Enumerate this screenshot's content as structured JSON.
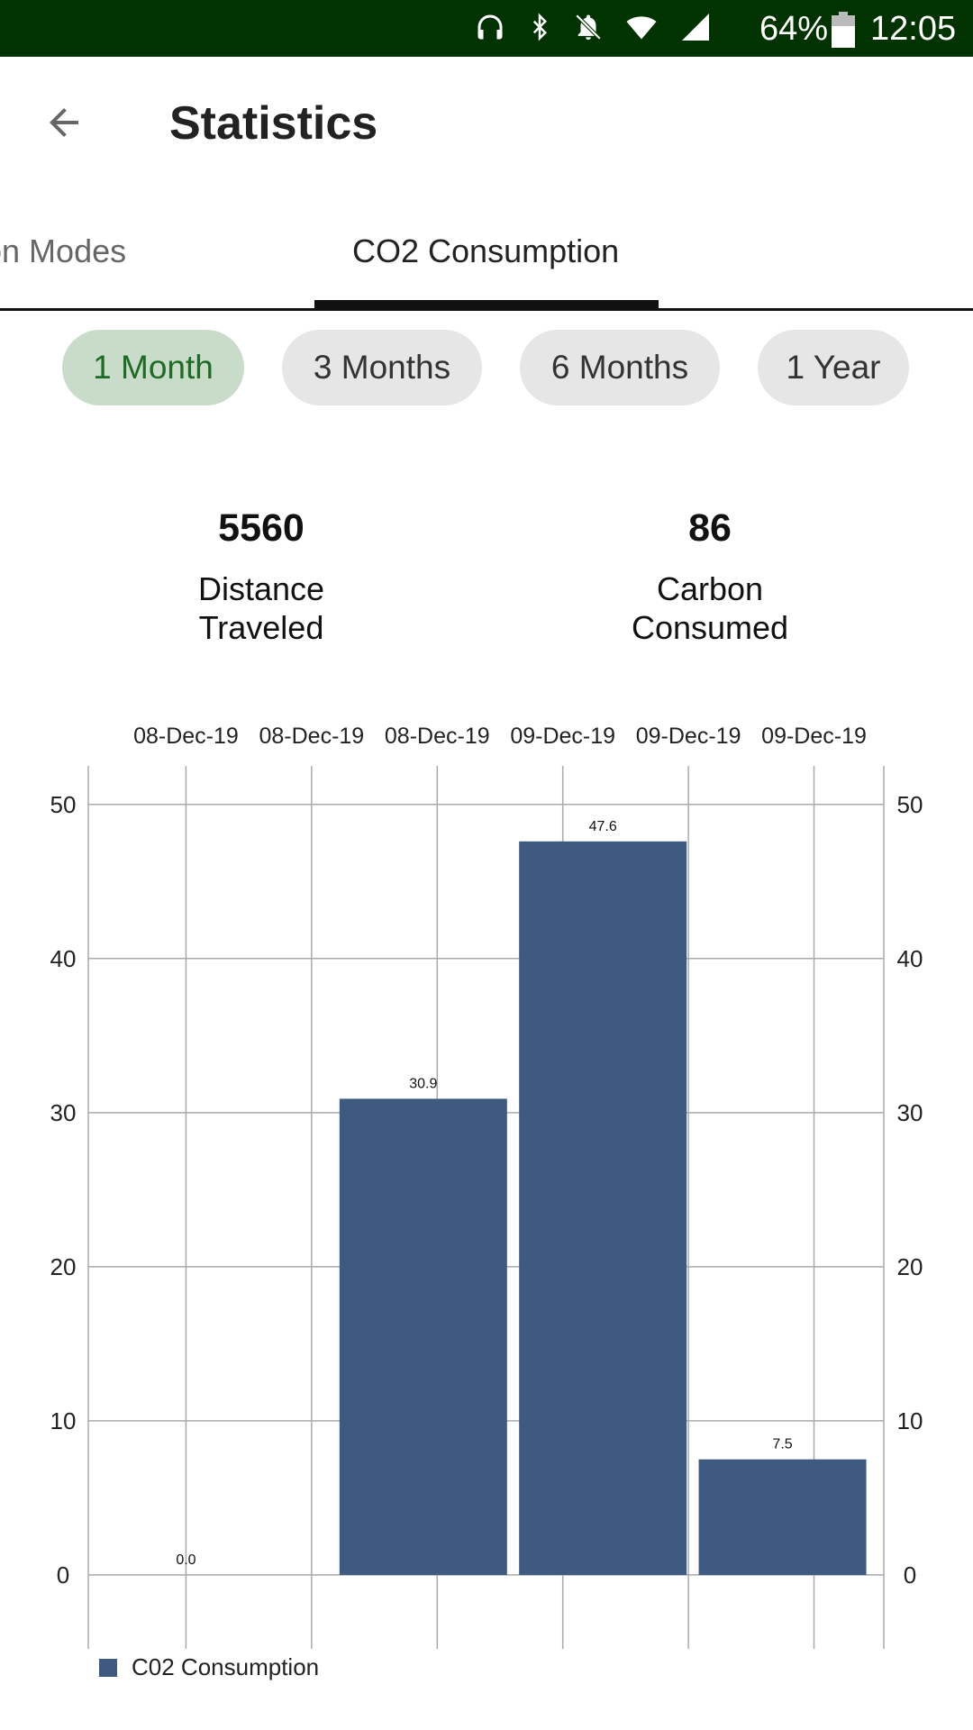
{
  "status_bar": {
    "battery": "64%",
    "time": "12:05",
    "icons": [
      "headphones-icon",
      "bluetooth-icon",
      "notifications-muted-icon",
      "wifi-icon",
      "cell-signal-icon",
      "battery-icon"
    ]
  },
  "app_bar": {
    "title": "Statistics",
    "back_icon": "arrow-back-icon"
  },
  "tabs": [
    {
      "label": "rtation Modes",
      "selected": false
    },
    {
      "label": "CO2 Consumption",
      "selected": true
    }
  ],
  "range_chips": [
    {
      "label": "1 Month",
      "selected": true
    },
    {
      "label": "3 Months",
      "selected": false
    },
    {
      "label": "6 Months",
      "selected": false
    },
    {
      "label": "1 Year",
      "selected": false
    }
  ],
  "stats": [
    {
      "value": "5560",
      "label": "Distance\nTraveled"
    },
    {
      "value": "86",
      "label": "Carbon\nConsumed"
    }
  ],
  "colors": {
    "status_bar": "#003300",
    "chip_selected_bg": "#c8dcc9",
    "chip_selected_text": "#1e6b23",
    "chip_bg": "#e6e6e6",
    "bar": "#3f5a80",
    "grid": "#aaaaaa"
  },
  "chart_data": {
    "type": "bar",
    "x_tick_labels": [
      "08-Dec-19",
      "08-Dec-19",
      "08-Dec-19",
      "09-Dec-19",
      "09-Dec-19",
      "09-Dec-19"
    ],
    "bar_positions": [
      0,
      1.43,
      2.86,
      4.29
    ],
    "series": [
      {
        "name": "C02 Consumption",
        "values": [
          0.0,
          30.9,
          47.6,
          7.5
        ],
        "labels": [
          "0.0",
          "30.9",
          "47.6",
          "7.5"
        ]
      }
    ],
    "y_ticks": [
      0,
      10,
      20,
      30,
      40,
      50
    ],
    "ylim": [
      -4.8,
      52.5
    ],
    "xlim": [
      -0.7,
      5.0
    ],
    "x_axis_position": "top",
    "y_axes": [
      "left",
      "right"
    ],
    "grid": true,
    "legend_position": "bottom-left"
  }
}
